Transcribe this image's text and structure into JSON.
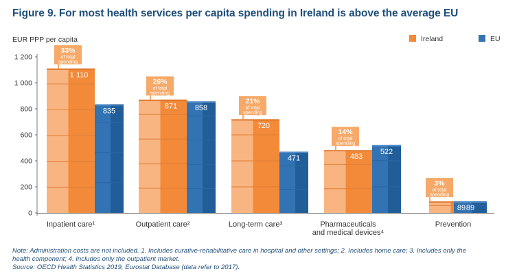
{
  "title": "Figure 9. For most health services per capita spending in Ireland is above the average EU",
  "colors": {
    "ireland": "#f28a3a",
    "ireland_light": "#f8b98a",
    "eu": "#3273b3",
    "eu_dark": "#1f5a94",
    "callout": "#f6a968",
    "title": "#1f4e79",
    "axis": "#555555"
  },
  "chart_data": {
    "type": "bar",
    "title": "Figure 9. For most health services per capita spending in Ireland is above the average EU",
    "ylabel": "EUR PPP per capita",
    "xlabel": "",
    "ylim": [
      0,
      1200
    ],
    "yticks": [
      0,
      200,
      400,
      600,
      800,
      1000,
      1200
    ],
    "ytick_labels": [
      "0",
      "200",
      "400",
      "600",
      "800",
      "1 000",
      "1 200"
    ],
    "categories": [
      "Inpatient care¹",
      "Outpatient care²",
      "Long-term care³",
      "Pharmaceuticals and medical devices⁴",
      "Prevention"
    ],
    "category_lines": [
      [
        "Inpatient care¹"
      ],
      [
        "Outpatient care²"
      ],
      [
        "Long-term care³"
      ],
      [
        "Pharmaceuticals",
        "and medical devices⁴"
      ],
      [
        "Prevention"
      ]
    ],
    "series": [
      {
        "name": "Ireland",
        "values": [
          1110,
          871,
          720,
          483,
          89
        ]
      },
      {
        "name": "EU",
        "values": [
          835,
          858,
          471,
          522,
          89
        ]
      }
    ],
    "value_labels": {
      "Ireland": [
        "1 110",
        "871",
        "720",
        "483",
        "89"
      ],
      "EU": [
        "835",
        "858",
        "471",
        "522",
        "89"
      ]
    },
    "share_labels": [
      "33%",
      "26%",
      "21%",
      "14%",
      "3%"
    ],
    "share_caption": [
      "of total",
      "spending"
    ],
    "legend": [
      "Ireland",
      "EU"
    ],
    "legend_position": "top-right",
    "grid": false
  },
  "note": {
    "line1": "Note: Administration costs are not included. 1. Includes curative-rehabilitative care in hospital and other settings; 2. Includes home care; 3. Includes only the",
    "line2": "health component; 4. Includes only the outpatient market.",
    "source": "Source: OECD Health Statistics 2019, Eurostat Database (data refer to 2017)."
  }
}
